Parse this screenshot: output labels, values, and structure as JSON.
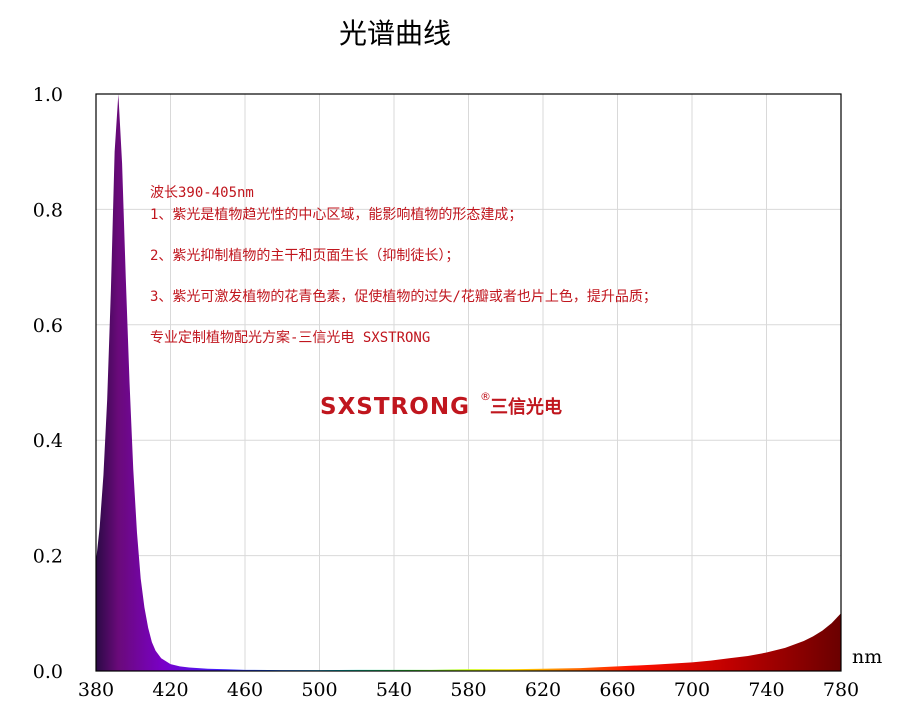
{
  "chart_data": {
    "type": "area",
    "title": "光谱曲线",
    "xlabel": "",
    "x_unit": "nm",
    "ylabel": "",
    "xlim": [
      380,
      780
    ],
    "ylim": [
      0,
      1.0
    ],
    "x_ticks": [
      "380",
      "420",
      "460",
      "500",
      "540",
      "580",
      "620",
      "660",
      "700",
      "740",
      "780"
    ],
    "y_ticks": [
      "0.0",
      "0.2",
      "0.4",
      "0.6",
      "0.8",
      "1.0"
    ],
    "grid": true,
    "fill": "spectral colormap (violet to dark red)",
    "series": [
      {
        "x": [
          380,
          382,
          384,
          386,
          388,
          390,
          392,
          394,
          396,
          398,
          400,
          402,
          404,
          406,
          408,
          410,
          412,
          415,
          420,
          425,
          430,
          440,
          450,
          460,
          480,
          500,
          520,
          540,
          560,
          580,
          600,
          620,
          640,
          660,
          680,
          700,
          710,
          720,
          730,
          740,
          750,
          760,
          765,
          770,
          775,
          780
        ],
        "values": [
          0.19,
          0.25,
          0.34,
          0.47,
          0.66,
          0.9,
          1.0,
          0.88,
          0.68,
          0.5,
          0.35,
          0.24,
          0.16,
          0.11,
          0.075,
          0.05,
          0.035,
          0.022,
          0.012,
          0.008,
          0.006,
          0.004,
          0.003,
          0.002,
          0.0015,
          0.0015,
          0.002,
          0.002,
          0.002,
          0.003,
          0.003,
          0.004,
          0.005,
          0.008,
          0.011,
          0.015,
          0.018,
          0.022,
          0.026,
          0.032,
          0.04,
          0.052,
          0.06,
          0.07,
          0.083,
          0.1
        ]
      }
    ]
  },
  "annotation": {
    "heading": "波长390-405nm",
    "lines": [
      "1、紫光是植物趋光性的中心区域，能影响植物的形态建成；",
      "2、紫光抑制植物的主干和页面生长（抑制徒长）；",
      "3、紫光可激发植物的花青色素，促使植物的过失/花瓣或者也片上色，提升品质；",
      "专业定制植物配光方案-三信光电 SXSTRONG"
    ]
  },
  "watermark": {
    "brand": "SXSTRONG",
    "reg": "®",
    "cn": "三信光电"
  },
  "colors": {
    "text_red": "#c0161e",
    "grid": "#d9d9d9",
    "axis": "#000000"
  }
}
